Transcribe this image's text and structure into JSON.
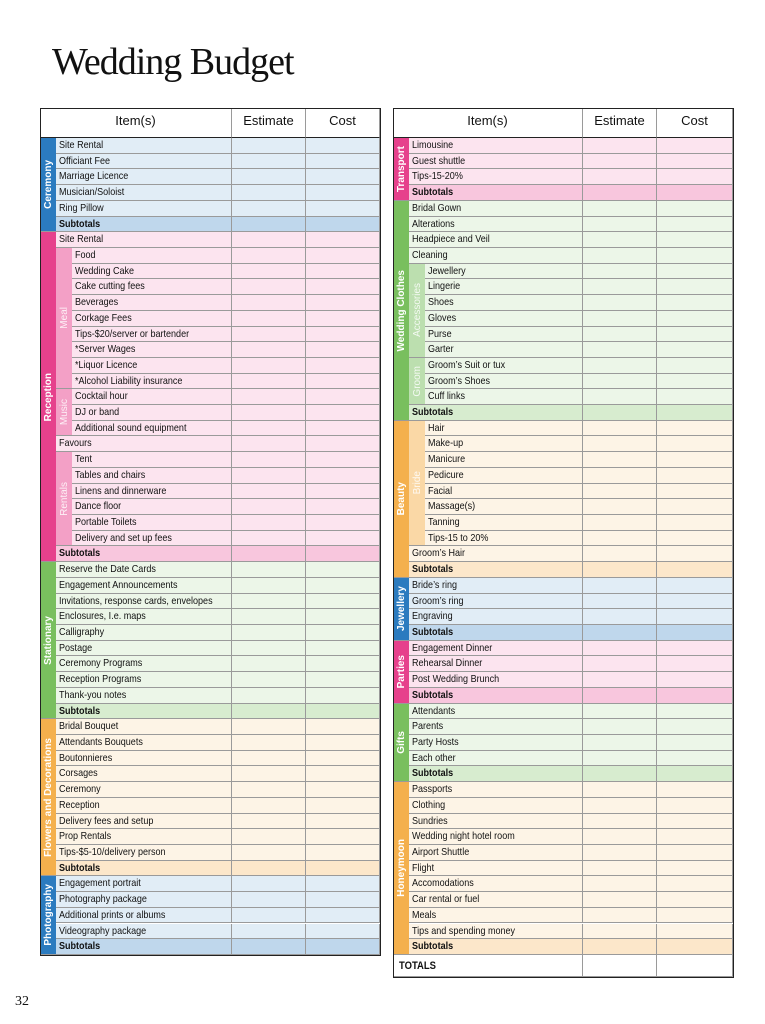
{
  "title": "Wedding Budget",
  "page_number": "32",
  "left_table": {
    "headers": [
      "Item(s)",
      "Estimate",
      "Cost"
    ],
    "sections": [
      {
        "label": "Ceremony",
        "color": "#2b7bbf",
        "items": [
          "Site Rental",
          "Officiant Fee",
          "Marriage Licence",
          "Musician/Soloist",
          "Ring Pillow"
        ],
        "subtotal": "Subtotals"
      },
      {
        "label": "Reception",
        "color": "#e6418c",
        "items": [
          "Site Rental",
          {
            "group": "Meal",
            "items": [
              "Food",
              "Wedding Cake",
              "Cake cutting fees",
              "Beverages",
              "Corkage Fees",
              "Tips-$20/server or bartender",
              "*Server Wages",
              "*Liquor Licence",
              "*Alcohol Liability insurance"
            ]
          },
          {
            "group": "Music",
            "items": [
              "Cocktail hour",
              "DJ or band",
              "Additional sound equipment"
            ]
          },
          "Favours",
          {
            "group": "Rentals",
            "items": [
              "Tent",
              "Tables and chairs",
              "Linens and dinnerware",
              "Dance floor",
              "Portable Toilets",
              "Delivery and set up fees"
            ]
          }
        ],
        "subtotal": "Subtotals"
      },
      {
        "label": "Stationary",
        "color": "#79bf5e",
        "items": [
          "Reserve the Date Cards",
          "Engagement Announcements",
          "Invitations, response cards, envelopes",
          "Enclosures, I.e. maps",
          "Calligraphy",
          "Postage",
          "Ceremony Programs",
          "Reception Programs",
          "Thank-you notes"
        ],
        "subtotal": "Subtotals"
      },
      {
        "label": "Flowers and Decorations",
        "color": "#f4b04d",
        "items": [
          "Bridal Bouquet",
          "Attendants Bouquets",
          "Boutonnieres",
          "Corsages",
          "Ceremony",
          "Reception",
          "Delivery fees and setup",
          "Prop Rentals",
          "Tips-$5-10/delivery person"
        ],
        "subtotal": "Subtotals"
      },
      {
        "label": "Photography",
        "color": "#2b7bbf",
        "items": [
          "Engagement portrait",
          "Photography package",
          "Additional prints or albums",
          "Videography package"
        ],
        "subtotal": "Subtotals"
      }
    ]
  },
  "right_table": {
    "headers": [
      "Item(s)",
      "Estimate",
      "Cost"
    ],
    "sections": [
      {
        "label": "Transport",
        "color": "#e6418c",
        "items": [
          "Limousine",
          "Guest shuttle",
          "Tips-15-20%"
        ],
        "subtotal": "Subtotals"
      },
      {
        "label": "Wedding Clothes",
        "color": "#79bf5e",
        "items": [
          "Bridal Gown",
          "Alterations",
          "Headpiece and Veil",
          "Cleaning",
          {
            "group": "Accessories",
            "items": [
              "Jewellery",
              "Lingerie",
              "Shoes",
              "Gloves",
              "Purse",
              "Garter"
            ]
          },
          {
            "group": "Groom",
            "items": [
              "Groom’s Suit or tux",
              "Groom’s Shoes",
              "Cuff links"
            ]
          }
        ],
        "subtotal": "Subtotals"
      },
      {
        "label": "Beauty",
        "color": "#f4b04d",
        "items": [
          {
            "group": "Bride",
            "items": [
              "Hair",
              "Make-up",
              "Manicure",
              "Pedicure",
              "Facial",
              "Massage(s)",
              "Tanning",
              "Tips-15 to 20%"
            ]
          },
          "Groom’s Hair"
        ],
        "subtotal": "Subtotals"
      },
      {
        "label": "Jewellery",
        "color": "#2b7bbf",
        "items": [
          "Bride’s ring",
          "Groom’s ring",
          "Engraving"
        ],
        "subtotal": "Subtotals"
      },
      {
        "label": "Parties",
        "color": "#e6418c",
        "items": [
          "Engagement Dinner",
          "Rehearsal Dinner",
          "Post Wedding Brunch"
        ],
        "subtotal": "Subtotals"
      },
      {
        "label": "Gifts",
        "color": "#79bf5e",
        "items": [
          "Attendants",
          "Parents",
          "Party Hosts",
          "Each other"
        ],
        "subtotal": "Subtotals"
      },
      {
        "label": "Honeymoon",
        "color": "#f4b04d",
        "items": [
          "Passports",
          "Clothing",
          "Sundries",
          "Wedding night hotel room",
          "Airport Shuttle",
          "Flight",
          "Accomodations",
          "Car rental or fuel",
          "Meals",
          "Tips and spending money"
        ],
        "subtotal": "Subtotals"
      }
    ],
    "totals": "TOTALS"
  }
}
